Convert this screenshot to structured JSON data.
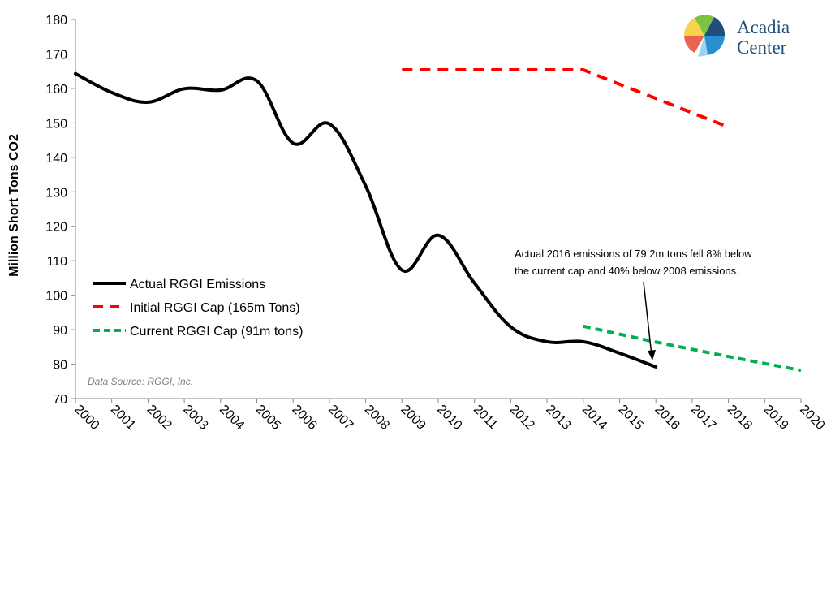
{
  "chart_data": {
    "type": "line",
    "title": "",
    "xlabel": "",
    "ylabel": "Million Short Tons CO2",
    "ylim": [
      70,
      180
    ],
    "yticks": [
      70,
      80,
      90,
      100,
      110,
      120,
      130,
      140,
      150,
      160,
      170,
      180
    ],
    "x": [
      "2000",
      "2001",
      "2002",
      "2003",
      "2004",
      "2005",
      "2006",
      "2007",
      "2008",
      "2009",
      "2010",
      "2011",
      "2012",
      "2013",
      "2014",
      "2015",
      "2016",
      "2017",
      "2018",
      "2019",
      "2020"
    ],
    "grid": false,
    "legend_position": "center-left",
    "series": [
      {
        "name": "Actual RGGI Emissions",
        "color": "#000000",
        "style": "solid",
        "points": [
          [
            "2000",
            164.3
          ],
          [
            "2001",
            158.8
          ],
          [
            "2002",
            156.0
          ],
          [
            "2003",
            159.9
          ],
          [
            "2004",
            159.5
          ],
          [
            "2005",
            162.2
          ],
          [
            "2006",
            144.1
          ],
          [
            "2007",
            149.7
          ],
          [
            "2008",
            131.7
          ],
          [
            "2009",
            107.3
          ],
          [
            "2010",
            117.4
          ],
          [
            "2011",
            103.5
          ],
          [
            "2012",
            90.8
          ],
          [
            "2013",
            86.5
          ],
          [
            "2014",
            86.5
          ],
          [
            "2015",
            83.2
          ],
          [
            "2016",
            79.2
          ]
        ]
      },
      {
        "name": "Initial RGGI Cap (165m Tons)",
        "color": "#ff0000",
        "style": "dashed",
        "points": [
          [
            "2009",
            165.4
          ],
          [
            "2010",
            165.4
          ],
          [
            "2011",
            165.4
          ],
          [
            "2012",
            165.4
          ],
          [
            "2013",
            165.4
          ],
          [
            "2014",
            165.4
          ],
          [
            "2015",
            161.2
          ],
          [
            "2016",
            157.1
          ],
          [
            "2017",
            152.9
          ],
          [
            "2018",
            148.8
          ]
        ]
      },
      {
        "name": "Current RGGI Cap (91m tons)",
        "color": "#00b050",
        "style": "dashed",
        "points": [
          [
            "2014",
            91.0
          ],
          [
            "2015",
            88.7
          ],
          [
            "2016",
            86.4
          ],
          [
            "2017",
            84.3
          ],
          [
            "2018",
            82.2
          ],
          [
            "2019",
            80.2
          ],
          [
            "2020",
            78.2
          ]
        ]
      }
    ],
    "annotation": {
      "lines": [
        "Actual 2016 emissions of 79.2m tons fell 8% below",
        "the current cap and 40% below 2008 emissions."
      ],
      "target": [
        "2016",
        79.2
      ]
    },
    "source_note": "Data Source: RGGI, Inc."
  },
  "logo": {
    "line1": "Acadia",
    "line2": "Center",
    "colors": [
      "#f5d547",
      "#7dc242",
      "#2a8fd0",
      "#1f4e79",
      "#e8523f"
    ]
  }
}
